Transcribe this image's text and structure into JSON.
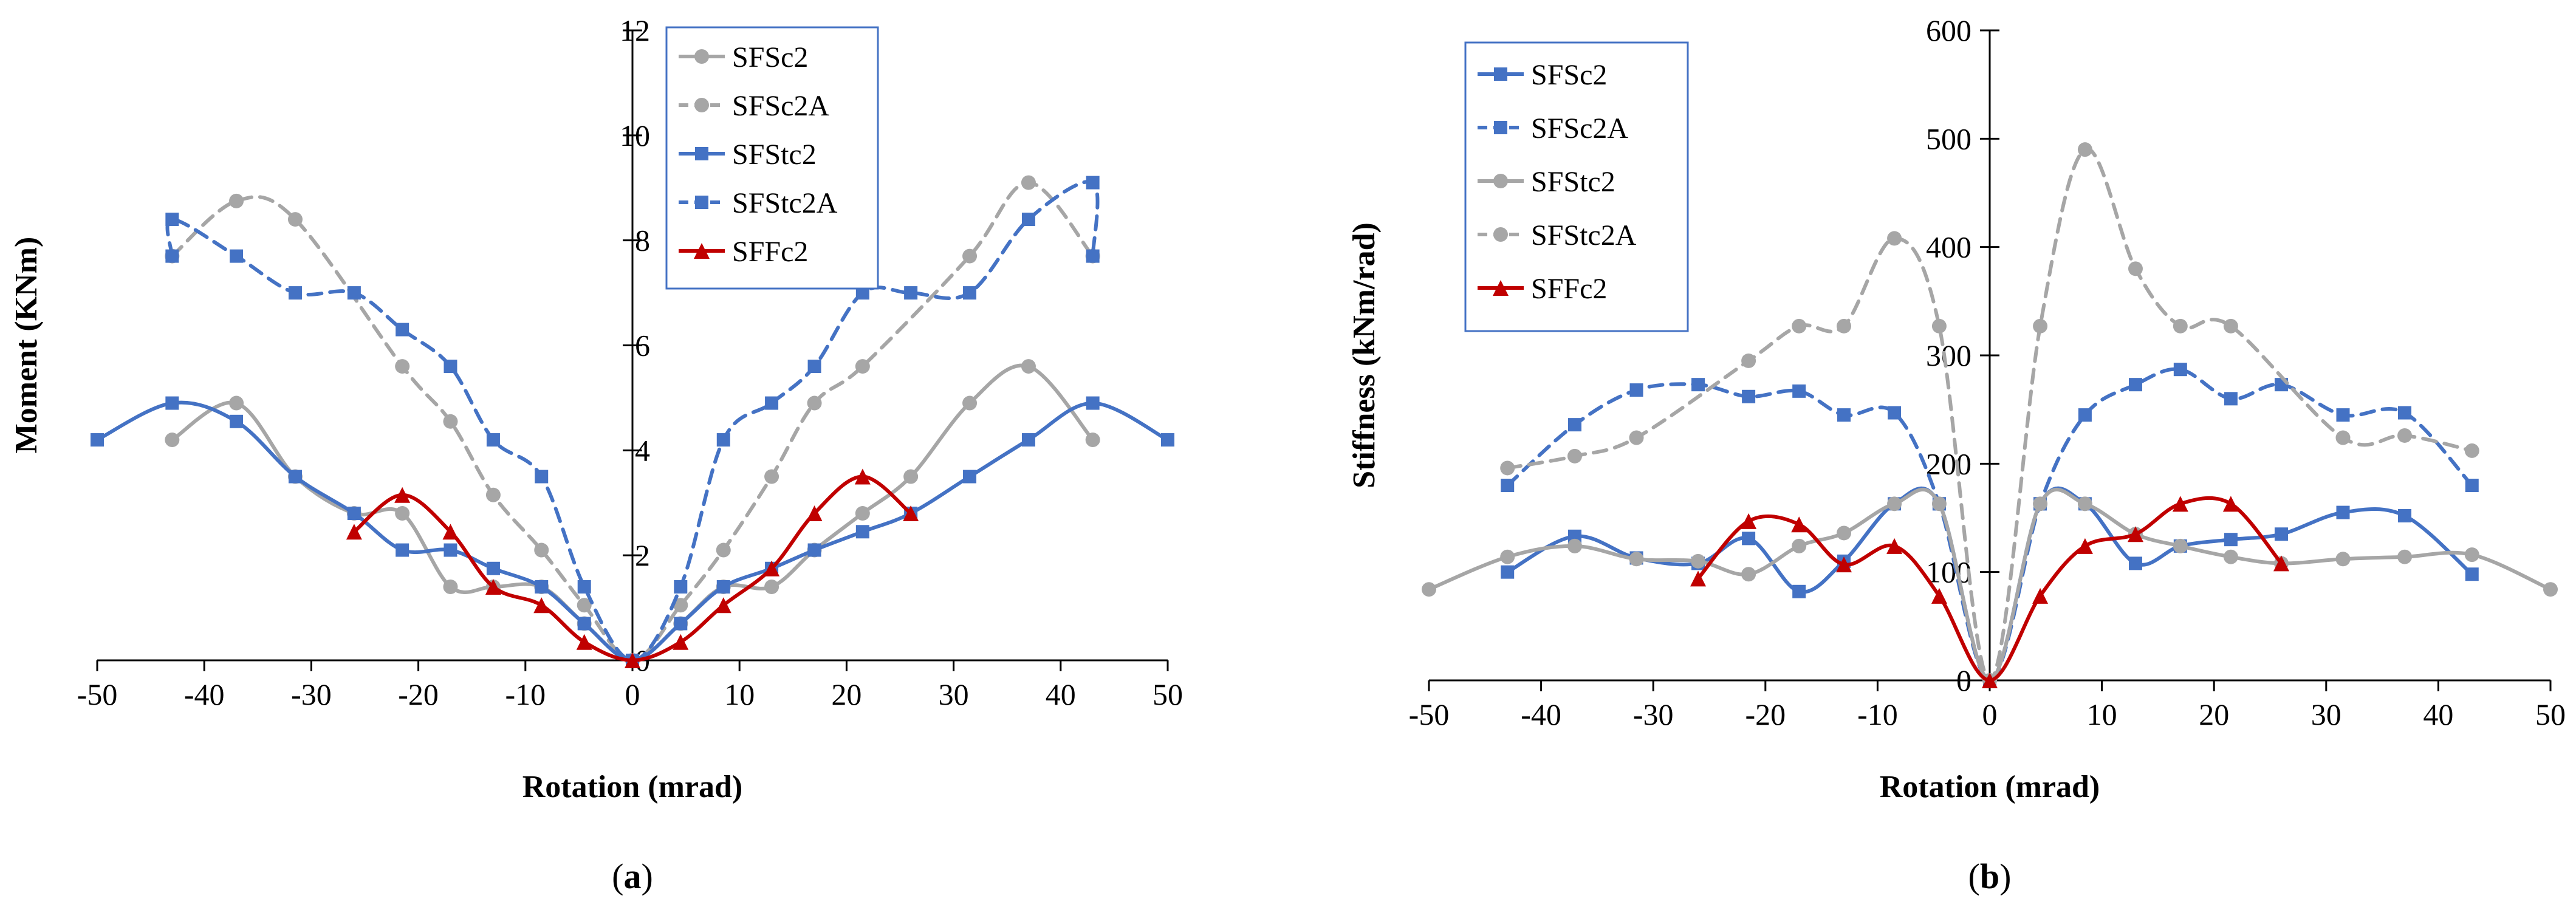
{
  "chart_data": [
    {
      "type": "line",
      "panel": "a",
      "panel_label": "(a)",
      "title": "",
      "xlabel": "Rotation (mrad)",
      "ylabel": "Moment (KNm)",
      "xlim": [
        -50,
        50
      ],
      "ylim": [
        0,
        12
      ],
      "xticks": [
        -50,
        -40,
        -30,
        -20,
        -10,
        0,
        10,
        20,
        30,
        40,
        50
      ],
      "yticks": [
        2,
        4,
        6,
        8,
        10,
        12
      ],
      "yticks_labeled": [
        "0",
        "2",
        "4",
        "6",
        "8",
        "10",
        "12"
      ],
      "grid": false,
      "legend_position": "top-center",
      "series": [
        {
          "name": "SFSc2",
          "color": "#a6a6a6",
          "dash": false,
          "marker": "circle",
          "x": [
            -43,
            -37,
            -31.5,
            -26,
            -21.5,
            -17,
            -13,
            -8.5,
            -4.5,
            0,
            4.5,
            8.5,
            13,
            17,
            21.5,
            26,
            31.5,
            37,
            43
          ],
          "y": [
            4.2,
            4.9,
            3.5,
            2.8,
            2.8,
            1.4,
            1.4,
            1.4,
            0.7,
            0,
            0.7,
            1.4,
            1.4,
            2.1,
            2.8,
            3.5,
            4.9,
            5.6,
            4.2
          ]
        },
        {
          "name": "SFSc2A",
          "color": "#a6a6a6",
          "dash": true,
          "marker": "circle",
          "x": [
            -43,
            -37,
            -31.5,
            -21.5,
            -17,
            -13,
            -8.5,
            -4.5,
            0,
            4.5,
            8.5,
            13,
            17,
            21.5,
            31.5,
            37,
            43
          ],
          "y": [
            7.7,
            8.75,
            8.4,
            5.6,
            4.55,
            3.15,
            2.1,
            1.05,
            0,
            1.05,
            2.1,
            3.5,
            4.9,
            5.6,
            7.7,
            9.1,
            7.7
          ]
        },
        {
          "name": "SFStc2",
          "color": "#4472c4",
          "dash": false,
          "marker": "square",
          "x": [
            -50,
            -43,
            -37,
            -31.5,
            -26,
            -21.5,
            -17,
            -13,
            -8.5,
            -4.5,
            0,
            4.5,
            8.5,
            13,
            17,
            21.5,
            26,
            31.5,
            37,
            43,
            50
          ],
          "y": [
            4.2,
            4.9,
            4.55,
            3.5,
            2.8,
            2.1,
            2.1,
            1.75,
            1.4,
            0.7,
            0,
            0.7,
            1.4,
            1.75,
            2.1,
            2.45,
            2.8,
            3.5,
            4.2,
            4.9,
            4.2
          ]
        },
        {
          "name": "SFStc2A",
          "color": "#4472c4",
          "dash": true,
          "marker": "square",
          "x": [
            -43,
            -43,
            -37,
            -31.5,
            -26,
            -21.5,
            -17,
            -13,
            -8.5,
            -4.5,
            0,
            4.5,
            8.5,
            13,
            17,
            21.5,
            26,
            31.5,
            37,
            43,
            43
          ],
          "y": [
            7.7,
            8.4,
            7.7,
            7.0,
            7.0,
            6.3,
            5.6,
            4.2,
            3.5,
            1.4,
            0,
            1.4,
            4.2,
            4.9,
            5.6,
            7.0,
            7.0,
            7.0,
            8.4,
            9.1,
            7.7
          ]
        },
        {
          "name": "SFFc2",
          "color": "#c00000",
          "dash": false,
          "marker": "triangle",
          "x": [
            -26,
            -21.5,
            -17,
            -13,
            -8.5,
            -4.5,
            0,
            4.5,
            8.5,
            13,
            17,
            21.5,
            26
          ],
          "y": [
            2.45,
            3.15,
            2.45,
            1.4,
            1.05,
            0.35,
            0,
            0.35,
            1.05,
            1.75,
            2.8,
            3.5,
            2.8
          ]
        }
      ]
    },
    {
      "type": "line",
      "panel": "b",
      "panel_label": "(b)",
      "title": "",
      "xlabel": "Rotation (mrad)",
      "ylabel": "Stiffness (kNm/rad)",
      "xlim": [
        -50,
        50
      ],
      "ylim": [
        0,
        600
      ],
      "xticks": [
        -50,
        -40,
        -30,
        -20,
        -10,
        0,
        10,
        20,
        30,
        40,
        50
      ],
      "yticks": [
        0,
        100,
        200,
        300,
        400,
        500,
        600
      ],
      "grid": false,
      "legend_position": "top-left",
      "series": [
        {
          "name": "SFSc2",
          "color": "#4472c4",
          "dash": false,
          "marker": "square",
          "x": [
            -43,
            -37,
            -31.5,
            -26,
            -21.5,
            -17,
            -13,
            -8.5,
            -4.5,
            0,
            4.5,
            8.5,
            13,
            17,
            21.5,
            26,
            31.5,
            37,
            43
          ],
          "y": [
            100,
            133,
            113,
            108,
            131,
            82,
            110,
            163,
            163,
            0,
            163,
            163,
            108,
            124,
            130,
            135,
            155,
            152,
            98
          ]
        },
        {
          "name": "SFSc2A",
          "color": "#4472c4",
          "dash": true,
          "marker": "square",
          "x": [
            -43,
            -37,
            -31.5,
            -26,
            -21.5,
            -17,
            -13,
            -8.5,
            -4.5,
            0,
            4.5,
            8.5,
            13,
            17,
            21.5,
            26,
            31.5,
            37,
            43
          ],
          "y": [
            180,
            236,
            268,
            273,
            262,
            267,
            245,
            247,
            163,
            0,
            163,
            245,
            273,
            287,
            260,
            273,
            245,
            247,
            180
          ]
        },
        {
          "name": "SFStc2",
          "color": "#a6a6a6",
          "dash": false,
          "marker": "circle",
          "x": [
            -50,
            -43,
            -37,
            -31.5,
            -26,
            -21.5,
            -17,
            -13,
            -8.5,
            -4.5,
            0,
            4.5,
            8.5,
            13,
            17,
            21.5,
            26,
            31.5,
            37,
            43,
            50
          ],
          "y": [
            84,
            114,
            124,
            112,
            110,
            98,
            124,
            136,
            163,
            163,
            0,
            163,
            163,
            135,
            124,
            114,
            108,
            112,
            114,
            116,
            84
          ]
        },
        {
          "name": "SFStc2A",
          "color": "#a6a6a6",
          "dash": true,
          "marker": "circle",
          "x": [
            -43,
            -37,
            -31.5,
            -21.5,
            -17,
            -13,
            -8.5,
            -4.5,
            0,
            4.5,
            8.5,
            13,
            17,
            21.5,
            31.5,
            37,
            43
          ],
          "y": [
            196,
            207,
            224,
            295,
            327,
            327,
            408,
            327,
            0,
            327,
            490,
            380,
            327,
            327,
            224,
            226,
            212
          ]
        },
        {
          "name": "SFFc2",
          "color": "#c00000",
          "dash": false,
          "marker": "triangle",
          "x": [
            -26,
            -21.5,
            -17,
            -13,
            -8.5,
            -4.5,
            0,
            4.5,
            8.5,
            13,
            17,
            21.5,
            26
          ],
          "y": [
            94,
            147,
            144,
            107,
            124,
            78,
            0,
            78,
            124,
            135,
            163,
            163,
            108
          ]
        }
      ]
    }
  ]
}
